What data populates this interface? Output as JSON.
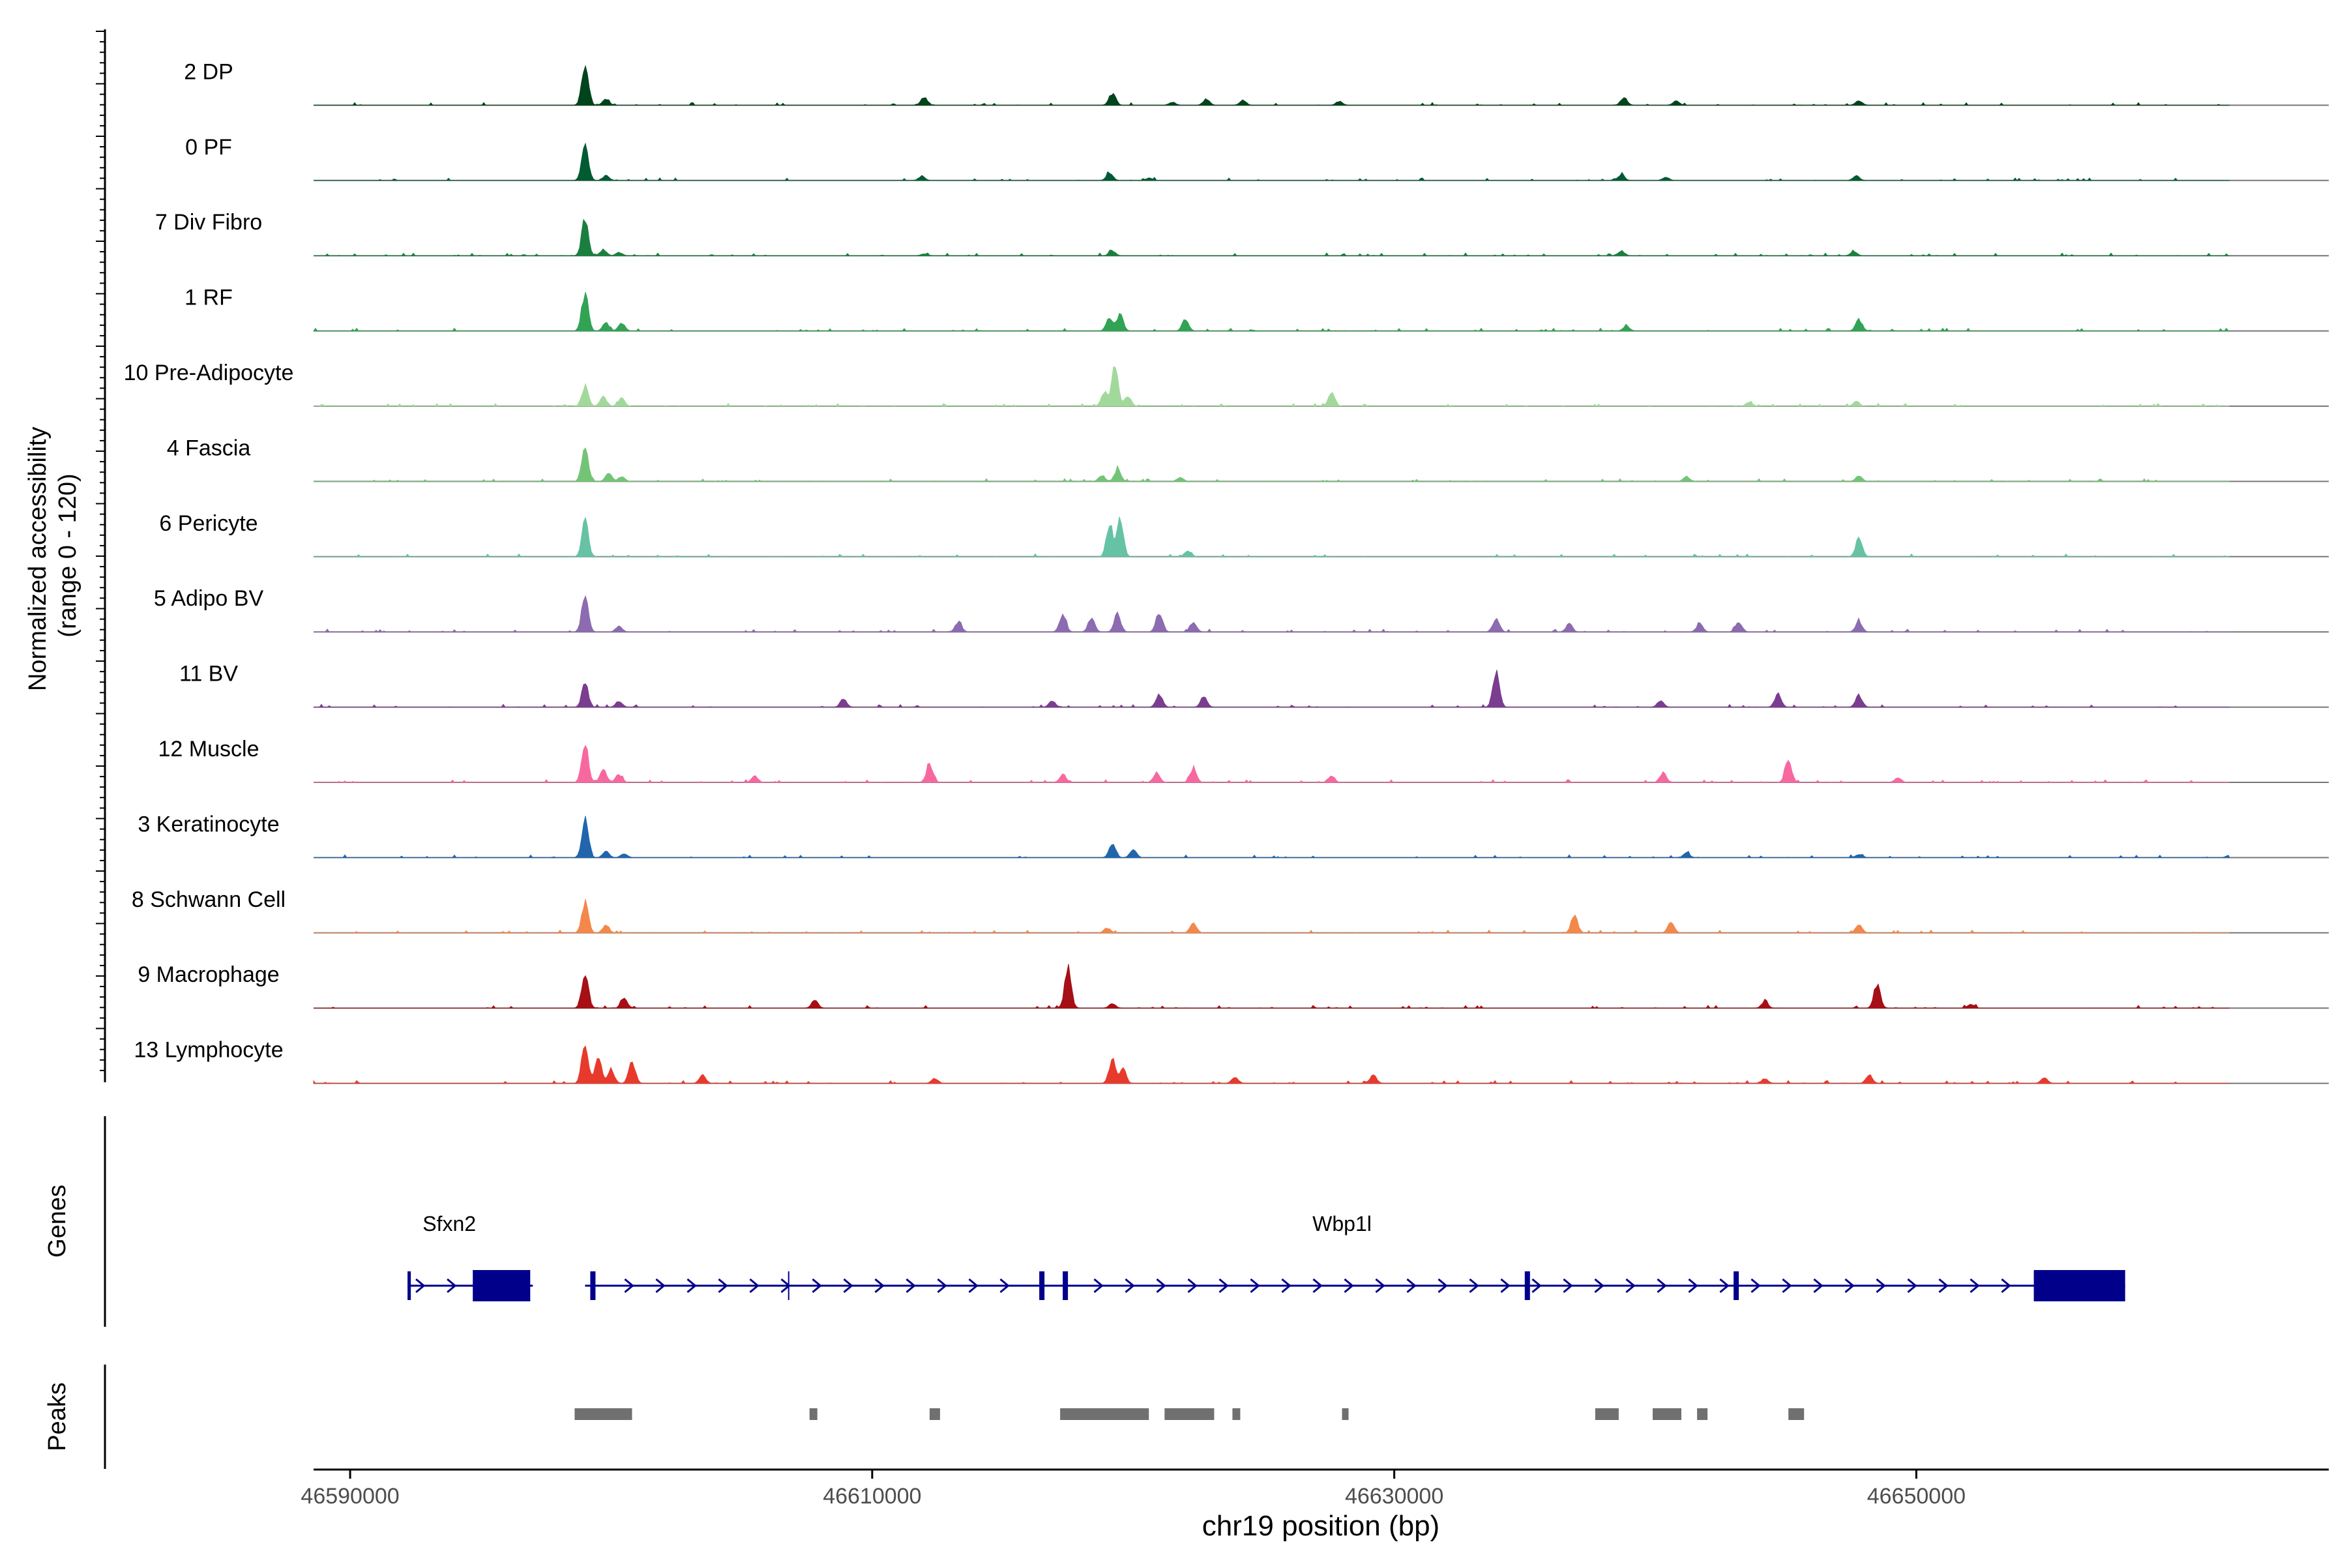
{
  "chart_data": {
    "type": "area",
    "title": "",
    "y_axis_label": "Normalized accessibility\n(range 0 - 120)",
    "y_range": [
      0,
      120
    ],
    "x_axis_label": "chr19 position (bp)",
    "x_range": [
      46588600,
      46665800
    ],
    "x_ticks": [
      46590000,
      46610000,
      46630000,
      46650000
    ],
    "x_tick_labels": [
      "46590000",
      "46610000",
      "46630000",
      "46650000"
    ],
    "track_labels": {
      "genes": "Genes",
      "peaks": "Peaks"
    },
    "series": [
      {
        "name": "2 DP",
        "color": "#00441b",
        "peaks": [
          [
            46599000,
            1.0
          ],
          [
            46599800,
            0.15
          ],
          [
            46612000,
            0.2
          ],
          [
            46619200,
            0.3
          ],
          [
            46621500,
            0.08
          ],
          [
            46622800,
            0.15
          ],
          [
            46624200,
            0.12
          ],
          [
            46627900,
            0.1
          ],
          [
            46638800,
            0.2
          ],
          [
            46640800,
            0.1
          ],
          [
            46647800,
            0.12
          ]
        ]
      },
      {
        "name": "0 PF",
        "color": "#005a32",
        "peaks": [
          [
            46599000,
            1.0
          ],
          [
            46599800,
            0.12
          ],
          [
            46611900,
            0.1
          ],
          [
            46619100,
            0.18
          ],
          [
            46620600,
            0.06
          ],
          [
            46638700,
            0.15
          ],
          [
            46640400,
            0.08
          ],
          [
            46647700,
            0.12
          ]
        ]
      },
      {
        "name": "7 Div Fibro",
        "color": "#1a7f3e",
        "peaks": [
          [
            46599000,
            0.95
          ],
          [
            46599700,
            0.15
          ],
          [
            46600300,
            0.08
          ],
          [
            46612000,
            0.05
          ],
          [
            46619200,
            0.12
          ],
          [
            46638700,
            0.12
          ],
          [
            46647600,
            0.1
          ]
        ]
      },
      {
        "name": "1 RF",
        "color": "#31a354",
        "peaks": [
          [
            46599000,
            0.95
          ],
          [
            46599800,
            0.2
          ],
          [
            46600400,
            0.2
          ],
          [
            46619100,
            0.35
          ],
          [
            46619500,
            0.4
          ],
          [
            46622000,
            0.3
          ],
          [
            46638900,
            0.12
          ],
          [
            46647800,
            0.28
          ]
        ]
      },
      {
        "name": "10 Pre-Adipocyte",
        "color": "#a1d99b",
        "peaks": [
          [
            46599000,
            0.5
          ],
          [
            46599700,
            0.25
          ],
          [
            46600400,
            0.2
          ],
          [
            46618900,
            0.35
          ],
          [
            46619300,
            1.0
          ],
          [
            46619800,
            0.25
          ],
          [
            46627600,
            0.35
          ],
          [
            46643600,
            0.1
          ],
          [
            46647700,
            0.12
          ]
        ]
      },
      {
        "name": "4 Fascia",
        "color": "#74c476",
        "peaks": [
          [
            46599000,
            0.85
          ],
          [
            46599900,
            0.2
          ],
          [
            46600400,
            0.12
          ],
          [
            46618800,
            0.15
          ],
          [
            46619400,
            0.3
          ],
          [
            46621800,
            0.1
          ],
          [
            46641200,
            0.12
          ],
          [
            46647800,
            0.15
          ]
        ]
      },
      {
        "name": "6 Pericyte",
        "color": "#66c2a4",
        "peaks": [
          [
            46599000,
            0.9
          ],
          [
            46619100,
            0.8
          ],
          [
            46619500,
            0.9
          ],
          [
            46622100,
            0.15
          ],
          [
            46647800,
            0.45
          ]
        ]
      },
      {
        "name": "5 Adipo BV",
        "color": "#8c6bb1",
        "peaks": [
          [
            46599000,
            0.9
          ],
          [
            46600300,
            0.15
          ],
          [
            46613300,
            0.25
          ],
          [
            46617300,
            0.45
          ],
          [
            46618400,
            0.35
          ],
          [
            46619400,
            0.45
          ],
          [
            46621000,
            0.5
          ],
          [
            46622300,
            0.25
          ],
          [
            46633900,
            0.35
          ],
          [
            46636700,
            0.2
          ],
          [
            46641700,
            0.2
          ],
          [
            46643200,
            0.25
          ],
          [
            46647800,
            0.25
          ]
        ]
      },
      {
        "name": "11 BV",
        "color": "#7a3d8f",
        "peaks": [
          [
            46599000,
            0.6
          ],
          [
            46600300,
            0.15
          ],
          [
            46608900,
            0.2
          ],
          [
            46616900,
            0.15
          ],
          [
            46621000,
            0.3
          ],
          [
            46622700,
            0.25
          ],
          [
            46633900,
            0.9
          ],
          [
            46640200,
            0.15
          ],
          [
            46644700,
            0.35
          ],
          [
            46647800,
            0.3
          ]
        ]
      },
      {
        "name": "12 Muscle",
        "color": "#f768a1",
        "peaks": [
          [
            46599000,
            1.0
          ],
          [
            46599700,
            0.3
          ],
          [
            46600300,
            0.2
          ],
          [
            46605500,
            0.15
          ],
          [
            46612200,
            0.45
          ],
          [
            46617300,
            0.2
          ],
          [
            46620900,
            0.25
          ],
          [
            46622300,
            0.35
          ],
          [
            46627600,
            0.15
          ],
          [
            46640300,
            0.25
          ],
          [
            46645100,
            0.55
          ],
          [
            46649300,
            0.12
          ]
        ]
      },
      {
        "name": "3 Keratinocyte",
        "color": "#2166ac",
        "peaks": [
          [
            46599000,
            0.95
          ],
          [
            46599800,
            0.15
          ],
          [
            46600500,
            0.1
          ],
          [
            46619200,
            0.35
          ],
          [
            46620000,
            0.2
          ],
          [
            46641200,
            0.12
          ],
          [
            46647800,
            0.08
          ],
          [
            46662000,
            0.06
          ]
        ]
      },
      {
        "name": "8 Schwann Cell",
        "color": "#f4874a",
        "peaks": [
          [
            46599000,
            0.75
          ],
          [
            46599800,
            0.2
          ],
          [
            46619000,
            0.12
          ],
          [
            46622300,
            0.25
          ],
          [
            46636900,
            0.45
          ],
          [
            46640600,
            0.25
          ],
          [
            46647800,
            0.2
          ]
        ]
      },
      {
        "name": "9 Macrophage",
        "color": "#a50f15",
        "peaks": [
          [
            46599000,
            0.95
          ],
          [
            46600500,
            0.25
          ],
          [
            46607800,
            0.2
          ],
          [
            46617500,
            1.0
          ],
          [
            46619200,
            0.12
          ],
          [
            46644200,
            0.15
          ],
          [
            46648500,
            0.6
          ],
          [
            46652100,
            0.1
          ]
        ]
      },
      {
        "name": "13 Lymphocyte",
        "color": "#e83a2c",
        "peaks": [
          [
            46599000,
            1.0
          ],
          [
            46599500,
            0.65
          ],
          [
            46600000,
            0.35
          ],
          [
            46600800,
            0.55
          ],
          [
            46603500,
            0.2
          ],
          [
            46612400,
            0.12
          ],
          [
            46619200,
            0.6
          ],
          [
            46619600,
            0.35
          ],
          [
            46623900,
            0.15
          ],
          [
            46629200,
            0.2
          ],
          [
            46644200,
            0.12
          ],
          [
            46648200,
            0.2
          ],
          [
            46654900,
            0.15
          ]
        ]
      }
    ],
    "genes": [
      {
        "name": "Sfxn2",
        "label_x": 46593800,
        "start": 46592200,
        "end": 46597000,
        "exons": [
          [
            46592200,
            46592300
          ],
          [
            46594700,
            46596900
          ]
        ]
      },
      {
        "name": "Wbp1l",
        "label_x": 46628000,
        "start": 46599000,
        "end": 46658000,
        "exons": [
          [
            46599200,
            46599400
          ],
          [
            46616400,
            46616600
          ],
          [
            46617300,
            46617500
          ],
          [
            46635000,
            46635200
          ],
          [
            46643000,
            46643200
          ],
          [
            46654500,
            46658000
          ]
        ]
      }
    ],
    "peak_regions": [
      [
        46598600,
        46600800
      ],
      [
        46607600,
        46607900
      ],
      [
        46612200,
        46612600
      ],
      [
        46617200,
        46620600
      ],
      [
        46621200,
        46623100
      ],
      [
        46623800,
        46624100
      ],
      [
        46628000,
        46628200
      ],
      [
        46637700,
        46638600
      ],
      [
        46639900,
        46641000
      ],
      [
        46641600,
        46642000
      ],
      [
        46645100,
        46645700
      ]
    ]
  }
}
